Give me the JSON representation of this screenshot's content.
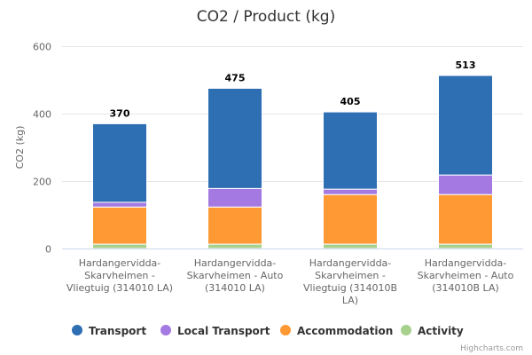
{
  "chart_data": {
    "type": "bar",
    "stacked": true,
    "title": "CO2 / Product (kg)",
    "xlabel": "",
    "ylabel": "CO2 (kg)",
    "ylim": [
      0,
      600
    ],
    "yticks": [
      0,
      200,
      400,
      600
    ],
    "grid": true,
    "legend_position": "bottom",
    "categories": [
      [
        "Hardangervidda-",
        "Skarvheimen -",
        "Vliegtuig (314010 LA)"
      ],
      [
        "Hardangervidda-",
        "Skarvheimen - Auto",
        "(314010 LA)"
      ],
      [
        "Hardangervidda-",
        "Skarvheimen -",
        "Vliegtuig (314010B",
        "LA)"
      ],
      [
        "Hardangervidda-",
        "Skarvheimen - Auto",
        "(314010B LA)"
      ]
    ],
    "series": [
      {
        "name": "Activity",
        "color": "#a6d08c",
        "values": [
          13,
          13,
          13,
          13
        ]
      },
      {
        "name": "Accommodation",
        "color": "#ff9933",
        "values": [
          110,
          110,
          147,
          147
        ]
      },
      {
        "name": "Local Transport",
        "color": "#a47ae2",
        "values": [
          14,
          55,
          16,
          58
        ]
      },
      {
        "name": "Transport",
        "color": "#2e6fb3",
        "values": [
          233,
          297,
          229,
          295
        ]
      }
    ],
    "totals": [
      370,
      475,
      405,
      513
    ],
    "legend": [
      {
        "name": "Transport",
        "color": "#2e6fb3"
      },
      {
        "name": "Local Transport",
        "color": "#a47ae2"
      },
      {
        "name": "Accommodation",
        "color": "#ff9933"
      },
      {
        "name": "Activity",
        "color": "#a6d08c"
      }
    ],
    "credits": "Highcharts.com"
  }
}
